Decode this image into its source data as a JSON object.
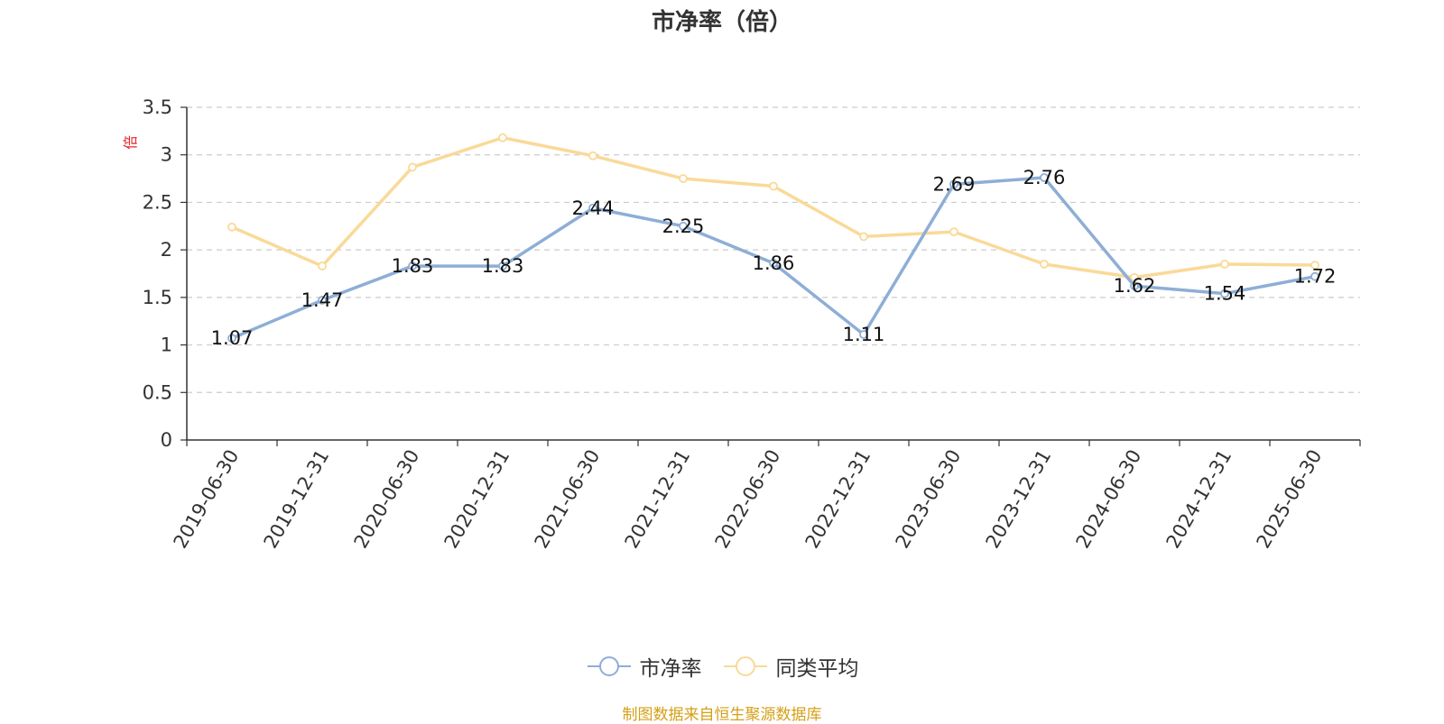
{
  "chart_data": {
    "type": "line",
    "title": "市净率（倍）",
    "ylabel": "倍",
    "categories": [
      "2019-06-30",
      "2019-12-31",
      "2020-06-30",
      "2020-12-31",
      "2021-06-30",
      "2021-12-31",
      "2022-06-30",
      "2022-12-31",
      "2023-06-30",
      "2023-12-31",
      "2024-06-30",
      "2024-12-31",
      "2025-06-30"
    ],
    "ylim": [
      0,
      3.5
    ],
    "yticks": [
      "0",
      "0.5",
      "1",
      "1.5",
      "2",
      "2.5",
      "3",
      "3.5"
    ],
    "grid": true,
    "legend_position": "bottom",
    "series": [
      {
        "name": "市净率",
        "color": "#8eaed6",
        "values": [
          1.07,
          1.47,
          1.83,
          1.83,
          2.44,
          2.25,
          1.86,
          1.11,
          2.69,
          2.76,
          1.62,
          1.54,
          1.72
        ],
        "labels": [
          "1.07",
          "1.47",
          "1.83",
          "1.83",
          "2.44",
          "2.25",
          "1.86",
          "1.11",
          "2.69",
          "2.76",
          "1.62",
          "1.54",
          "1.72"
        ]
      },
      {
        "name": "同类平均",
        "color": "#fad998",
        "values": [
          2.24,
          1.83,
          2.87,
          3.18,
          2.99,
          2.75,
          2.67,
          2.14,
          2.19,
          1.85,
          1.71,
          1.85,
          1.84
        ]
      }
    ]
  },
  "footer": "制图数据来自恒生聚源数据库"
}
